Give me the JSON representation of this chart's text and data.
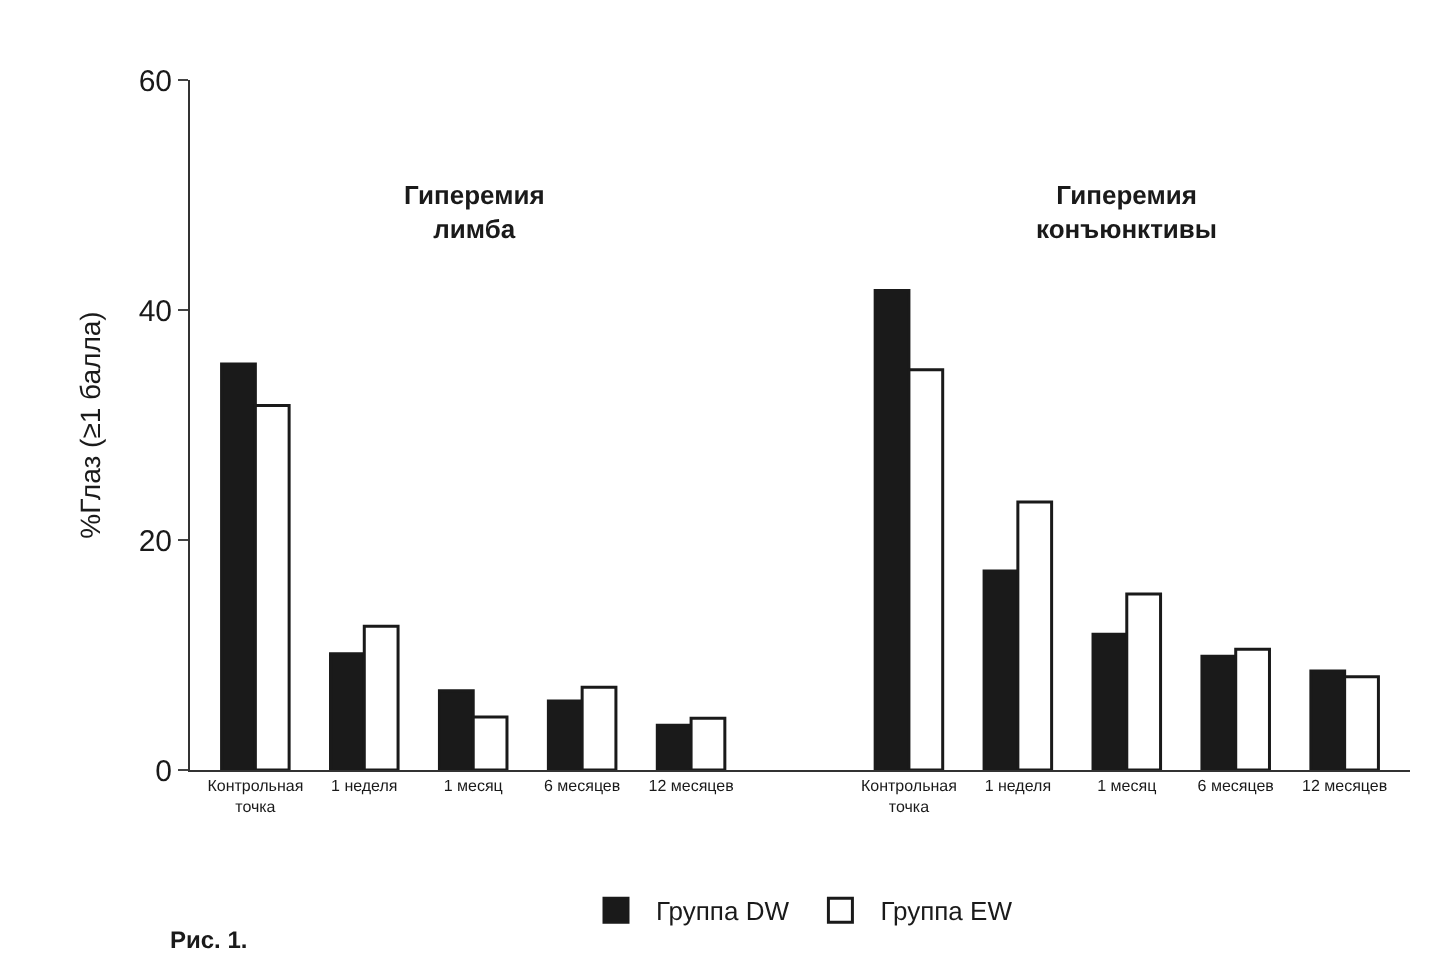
{
  "chart_data": {
    "type": "bar",
    "ylabel": "%Глаз (≥1 балла)",
    "categories": [
      "Контрольная\nточка",
      "1 неделя",
      "1 месяц",
      "6 месяцев",
      "12 месяцев",
      null,
      "Контрольная\nточка",
      "1 неделя",
      "1 месяц",
      "6 месяцев",
      "12 месяцев"
    ],
    "series": [
      {
        "name": "Группа DW",
        "color": "#1a1a1a",
        "values": [
          35.3,
          10.1,
          6.9,
          6.0,
          3.9,
          null,
          41.7,
          17.3,
          11.8,
          9.9,
          8.6
        ]
      },
      {
        "name": "Группа EW",
        "color": "#ffffff",
        "values": [
          31.7,
          12.5,
          4.6,
          7.2,
          4.5,
          null,
          34.8,
          23.3,
          15.3,
          10.5,
          8.1
        ]
      }
    ],
    "ylim": [
      0,
      60
    ],
    "yticks": [
      0,
      20,
      40,
      60
    ],
    "legend": "bottom",
    "annotations": [
      "Гиперемия\nлимба",
      "Гиперемия\nконъюнктивы",
      "Рис. 1."
    ]
  }
}
